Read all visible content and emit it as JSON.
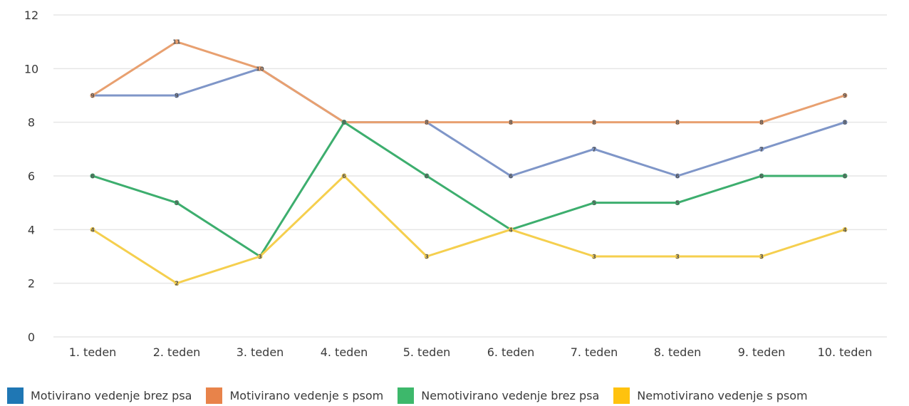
{
  "chart_data": {
    "type": "line",
    "title": "",
    "xlabel": "",
    "ylabel": "",
    "categories": [
      "1. teden",
      "2. teden",
      "3. teden",
      "4. teden",
      "5. teden",
      "6. teden",
      "7. teden",
      "8. teden",
      "9. teden",
      "10. teden"
    ],
    "ylim": [
      0,
      12
    ],
    "yticks": [
      0,
      2,
      4,
      6,
      8,
      10,
      12
    ],
    "grid": true,
    "legend_position": "bottom",
    "series": [
      {
        "name": "Motivirano vedenje brez psa",
        "line_color": "#7f96c8",
        "legend_color": "#1f77b4",
        "values": [
          9,
          9,
          10,
          8,
          8,
          6,
          7,
          6,
          7,
          8
        ]
      },
      {
        "name": "Motivirano vedenje s psom",
        "line_color": "#e8a070",
        "legend_color": "#e8834a",
        "values": [
          9,
          11,
          10,
          8,
          8,
          8,
          8,
          8,
          8,
          9
        ]
      },
      {
        "name": "Nemotivirano vedenje brez psa",
        "line_color": "#3dae6e",
        "legend_color": "#3db86b",
        "values": [
          6,
          5,
          3,
          8,
          6,
          4,
          5,
          5,
          6,
          6
        ]
      },
      {
        "name": "Nemotivirano vedenje s psom",
        "line_color": "#f5cf4e",
        "legend_color": "#ffc20e",
        "values": [
          4,
          2,
          3,
          6,
          3,
          4,
          3,
          3,
          3,
          4
        ]
      }
    ]
  }
}
